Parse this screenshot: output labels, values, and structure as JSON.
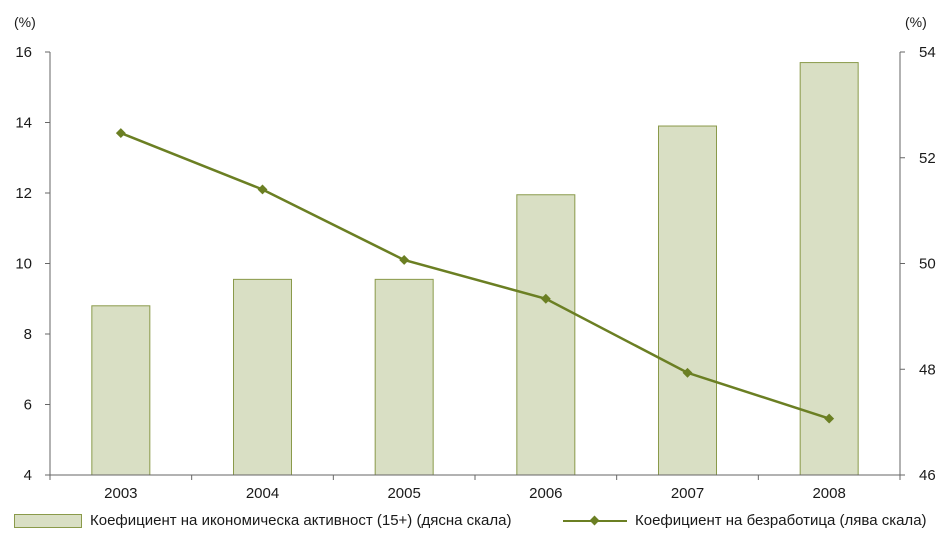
{
  "chart_data": {
    "type": "bar+line",
    "categories": [
      "2003",
      "2004",
      "2005",
      "2006",
      "2007",
      "2008"
    ],
    "left_axis": {
      "unit_label": "(%)",
      "ylim": [
        4,
        16
      ],
      "ticks": [
        "4",
        "6",
        "8",
        "10",
        "12",
        "14",
        "16"
      ]
    },
    "right_axis": {
      "unit_label": "(%)",
      "ylim": [
        46,
        54
      ],
      "ticks": [
        "46",
        "48",
        "50",
        "52",
        "54"
      ]
    },
    "series": [
      {
        "name": "Коефициент на икономическа активност (15+) (дясна скала)",
        "type": "bar",
        "axis": "right",
        "values": [
          49.2,
          49.7,
          49.7,
          51.3,
          52.6,
          53.8
        ]
      },
      {
        "name": "Коефициент на безработица (лява скала)",
        "type": "line",
        "axis": "left",
        "values": [
          13.7,
          12.1,
          10.1,
          9.0,
          6.9,
          5.6
        ]
      }
    ],
    "colors": {
      "bar_fill": "#d9dfc4",
      "bar_stroke": "#8a9a4a",
      "line": "#6b7f23",
      "axis": "#666666"
    },
    "grid": false,
    "legend_position": "bottom"
  }
}
